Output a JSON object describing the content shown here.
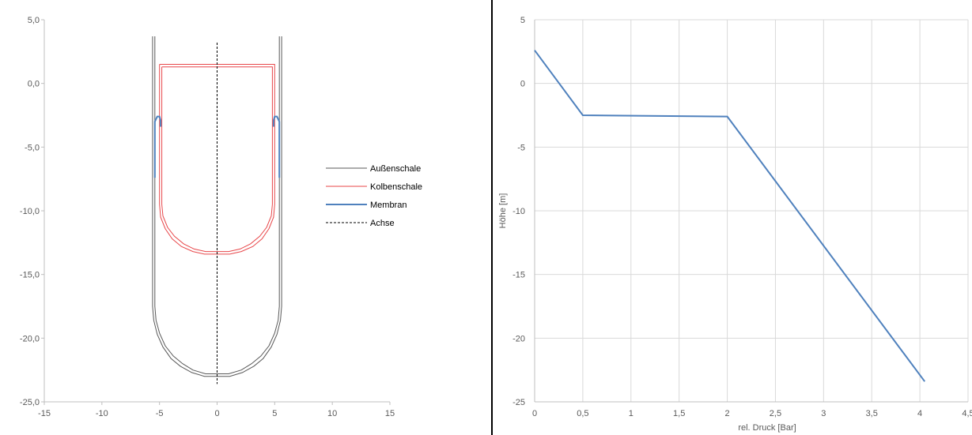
{
  "chart_data": [
    {
      "type": "line",
      "xlim": [
        -15,
        15
      ],
      "ylim": [
        -25,
        5
      ],
      "x_ticks": [
        "-15",
        "-10",
        "-5",
        "0",
        "5",
        "10",
        "15"
      ],
      "y_ticks": [
        "5,0",
        "0,0",
        "-5,0",
        "-10,0",
        "-15,0",
        "-20,0",
        "-25,0"
      ],
      "grid": false,
      "legend_position": "right",
      "series": [
        {
          "name": "Außenschale",
          "color": "#595959",
          "paths": [
            [
              [
                -5.6,
                3.7
              ],
              [
                -5.6,
                -17.5
              ],
              [
                -5.5,
                -18.6
              ],
              [
                -5.2,
                -19.7
              ],
              [
                -4.7,
                -20.7
              ],
              [
                -4.0,
                -21.6
              ],
              [
                -3.2,
                -22.2
              ],
              [
                -2.2,
                -22.7
              ],
              [
                -1.1,
                -23.0
              ],
              [
                0,
                -23.0
              ],
              [
                1.1,
                -23.0
              ],
              [
                2.2,
                -22.7
              ],
              [
                3.2,
                -22.2
              ],
              [
                4.0,
                -21.6
              ],
              [
                4.7,
                -20.7
              ],
              [
                5.2,
                -19.7
              ],
              [
                5.5,
                -18.6
              ],
              [
                5.6,
                -17.5
              ],
              [
                5.6,
                3.7
              ]
            ],
            [
              [
                -5.4,
                3.7
              ],
              [
                -5.4,
                -17.5
              ],
              [
                -5.3,
                -18.6
              ],
              [
                -5.0,
                -19.6
              ],
              [
                -4.5,
                -20.6
              ],
              [
                -3.8,
                -21.4
              ],
              [
                -3.0,
                -22.0
              ],
              [
                -2.1,
                -22.5
              ],
              [
                -1.0,
                -22.8
              ],
              [
                0,
                -22.8
              ],
              [
                1.0,
                -22.8
              ],
              [
                2.1,
                -22.5
              ],
              [
                3.0,
                -22.0
              ],
              [
                3.8,
                -21.4
              ],
              [
                4.5,
                -20.6
              ],
              [
                5.0,
                -19.6
              ],
              [
                5.3,
                -18.6
              ],
              [
                5.4,
                -17.5
              ],
              [
                5.4,
                3.7
              ]
            ]
          ]
        },
        {
          "name": "Kolbenschale",
          "color": "#e8474a",
          "paths": [
            [
              [
                -5.0,
                1.5
              ],
              [
                5.0,
                1.5
              ],
              [
                5.0,
                -9.5
              ],
              [
                4.9,
                -10.5
              ],
              [
                4.5,
                -11.4
              ],
              [
                3.9,
                -12.2
              ],
              [
                3.1,
                -12.8
              ],
              [
                2.1,
                -13.2
              ],
              [
                1.1,
                -13.4
              ],
              [
                0,
                -13.4
              ],
              [
                -1.1,
                -13.4
              ],
              [
                -2.1,
                -13.2
              ],
              [
                -3.1,
                -12.8
              ],
              [
                -3.9,
                -12.2
              ],
              [
                -4.5,
                -11.4
              ],
              [
                -4.9,
                -10.5
              ],
              [
                -5.0,
                -9.5
              ],
              [
                -5.0,
                1.5
              ]
            ],
            [
              [
                -4.8,
                1.3
              ],
              [
                4.8,
                1.3
              ],
              [
                4.8,
                -9.5
              ],
              [
                4.7,
                -10.4
              ],
              [
                4.3,
                -11.3
              ],
              [
                3.7,
                -12.0
              ],
              [
                2.9,
                -12.6
              ],
              [
                2.0,
                -13.0
              ],
              [
                1.0,
                -13.2
              ],
              [
                0,
                -13.2
              ],
              [
                -1.0,
                -13.2
              ],
              [
                -2.0,
                -13.0
              ],
              [
                -2.9,
                -12.6
              ],
              [
                -3.7,
                -12.0
              ],
              [
                -4.3,
                -11.3
              ],
              [
                -4.7,
                -10.4
              ],
              [
                -4.8,
                -9.5
              ],
              [
                -4.8,
                1.3
              ]
            ]
          ]
        },
        {
          "name": "Membran",
          "color": "#4f81bd",
          "paths": [
            [
              [
                -5.4,
                -7.4
              ],
              [
                -5.4,
                -3.0
              ],
              [
                -5.2,
                -2.6
              ],
              [
                -5.0,
                -2.6
              ],
              [
                -4.9,
                -2.9
              ],
              [
                -4.9,
                -3.4
              ]
            ],
            [
              [
                5.4,
                -7.4
              ],
              [
                5.4,
                -3.0
              ],
              [
                5.2,
                -2.6
              ],
              [
                5.0,
                -2.6
              ],
              [
                4.9,
                -2.9
              ],
              [
                4.9,
                -3.4
              ]
            ]
          ]
        },
        {
          "name": "Achse",
          "color": "#000000",
          "dashed": true,
          "paths": [
            [
              [
                0,
                3.2
              ],
              [
                0,
                -23.6
              ]
            ]
          ]
        }
      ]
    },
    {
      "type": "line",
      "ylabel": "Höhe [m]",
      "xlabel": "rel. Druck [Bar]",
      "xlim": [
        0,
        4.5
      ],
      "ylim": [
        -25,
        5
      ],
      "x_ticks": [
        "0",
        "0,5",
        "1",
        "1,5",
        "2",
        "2,5",
        "3",
        "3,5",
        "4",
        "4,5"
      ],
      "y_ticks": [
        "5",
        "0",
        "-5",
        "-10",
        "-15",
        "-20",
        "-25"
      ],
      "grid": true,
      "series": [
        {
          "color": "#4f81bd",
          "x": [
            0,
            0.5,
            2.0,
            4.05
          ],
          "y": [
            2.6,
            -2.5,
            -2.6,
            -23.4
          ]
        }
      ]
    }
  ]
}
